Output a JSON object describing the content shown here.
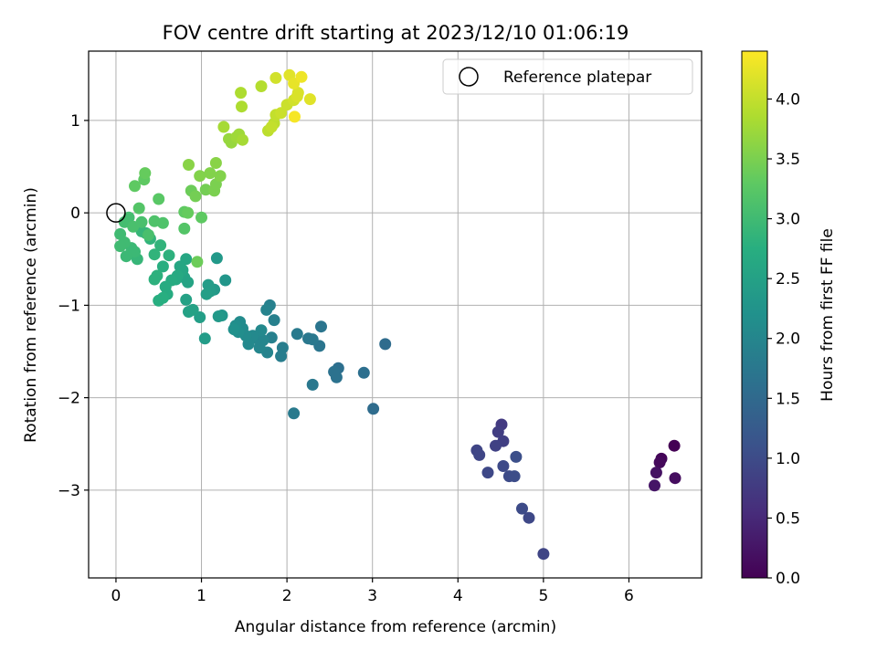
{
  "chart_data": {
    "type": "scatter",
    "title": "FOV centre drift starting at 2023/12/10 01:06:19",
    "xlabel": "Angular distance from reference (arcmin)",
    "ylabel": "Rotation from reference (arcmin)",
    "xlim": [
      -0.32,
      6.85
    ],
    "ylim": [
      -3.95,
      1.75
    ],
    "xticks": [
      0,
      1,
      2,
      3,
      4,
      5,
      6
    ],
    "xtick_labels": [
      "0",
      "1",
      "2",
      "3",
      "4",
      "5",
      "6"
    ],
    "yticks": [
      -3,
      -2,
      -1,
      0,
      1
    ],
    "ytick_labels": [
      "−3",
      "−2",
      "−1",
      "0",
      "1"
    ],
    "grid": true,
    "legend": {
      "position": "top-right",
      "label": "Reference platepar"
    },
    "reference_point": [
      0,
      0
    ],
    "colorbar": {
      "label": "Hours from first FF file",
      "colormap": "viridis",
      "range": [
        0.0,
        4.4
      ],
      "ticks": [
        0.0,
        0.5,
        1.0,
        1.5,
        2.0,
        2.5,
        3.0,
        3.5,
        4.0
      ],
      "tick_labels": [
        "0.0",
        "0.5",
        "1.0",
        "1.5",
        "2.0",
        "2.5",
        "3.0",
        "3.5",
        "4.0"
      ]
    },
    "series": [
      {
        "points": [
          [
            6.53,
            -2.52,
            0.0
          ],
          [
            6.38,
            -2.66,
            0.05
          ],
          [
            6.36,
            -2.7,
            0.1
          ],
          [
            6.54,
            -2.87,
            0.15
          ],
          [
            6.32,
            -2.81,
            0.2
          ],
          [
            6.3,
            -2.95,
            0.25
          ],
          [
            4.51,
            -2.29,
            0.75
          ],
          [
            4.47,
            -2.37,
            0.8
          ],
          [
            4.53,
            -2.47,
            0.82
          ],
          [
            4.44,
            -2.52,
            0.85
          ],
          [
            4.22,
            -2.57,
            0.9
          ],
          [
            4.25,
            -2.62,
            0.92
          ],
          [
            4.35,
            -2.81,
            0.95
          ],
          [
            4.53,
            -2.74,
            0.98
          ],
          [
            4.6,
            -2.85,
            1.0
          ],
          [
            4.66,
            -2.85,
            1.03
          ],
          [
            4.68,
            -2.64,
            1.05
          ],
          [
            4.75,
            -3.2,
            1.0
          ],
          [
            4.83,
            -3.3,
            0.95
          ],
          [
            5.0,
            -3.69,
            0.9
          ],
          [
            3.15,
            -1.42,
            1.55
          ],
          [
            3.01,
            -2.12,
            1.55
          ],
          [
            2.9,
            -1.73,
            1.6
          ],
          [
            2.6,
            -1.68,
            1.6
          ],
          [
            2.55,
            -1.72,
            1.65
          ],
          [
            2.58,
            -1.78,
            1.65
          ],
          [
            2.4,
            -1.23,
            1.7
          ],
          [
            2.38,
            -1.44,
            1.7
          ],
          [
            2.3,
            -1.37,
            1.75
          ],
          [
            2.25,
            -1.36,
            1.75
          ],
          [
            2.3,
            -1.86,
            1.75
          ],
          [
            2.08,
            -2.17,
            1.8
          ],
          [
            2.12,
            -1.31,
            1.8
          ],
          [
            1.95,
            -1.46,
            1.85
          ],
          [
            1.93,
            -1.55,
            1.85
          ],
          [
            1.85,
            -1.16,
            1.9
          ],
          [
            1.8,
            -1.0,
            1.9
          ],
          [
            1.82,
            -1.35,
            1.9
          ],
          [
            1.77,
            -1.51,
            1.95
          ],
          [
            1.76,
            -1.05,
            1.95
          ],
          [
            1.72,
            -1.38,
            2.0
          ],
          [
            1.68,
            -1.46,
            2.0
          ],
          [
            1.65,
            -1.36,
            2.0
          ],
          [
            1.7,
            -1.27,
            2.05
          ],
          [
            1.6,
            -1.33,
            2.05
          ],
          [
            1.55,
            -1.42,
            2.05
          ],
          [
            1.52,
            -1.33,
            2.1
          ],
          [
            1.48,
            -1.25,
            2.1
          ],
          [
            1.45,
            -1.18,
            2.1
          ],
          [
            1.43,
            -1.29,
            2.15
          ],
          [
            1.4,
            -1.22,
            2.15
          ],
          [
            1.38,
            -1.26,
            2.2
          ],
          [
            1.28,
            -0.73,
            2.3
          ],
          [
            1.24,
            -1.11,
            2.3
          ],
          [
            1.2,
            -1.12,
            2.35
          ],
          [
            1.18,
            -0.49,
            2.35
          ],
          [
            1.15,
            -0.83,
            2.35
          ],
          [
            1.1,
            -0.85,
            2.4
          ],
          [
            1.08,
            -0.78,
            2.4
          ],
          [
            1.06,
            -0.88,
            2.45
          ],
          [
            1.04,
            -1.36,
            2.4
          ],
          [
            0.98,
            -1.13,
            2.45
          ],
          [
            0.9,
            -1.05,
            2.5
          ],
          [
            0.85,
            -1.07,
            2.5
          ],
          [
            0.82,
            -0.94,
            2.5
          ],
          [
            0.84,
            -0.75,
            2.55
          ],
          [
            0.8,
            -0.7,
            2.55
          ],
          [
            0.78,
            -0.62,
            2.6
          ],
          [
            0.82,
            -0.5,
            2.6
          ],
          [
            0.75,
            -0.58,
            2.6
          ],
          [
            0.72,
            -0.68,
            2.65
          ],
          [
            0.7,
            -0.72,
            2.65
          ],
          [
            0.65,
            -0.73,
            2.7
          ],
          [
            0.6,
            -0.88,
            2.7
          ],
          [
            0.58,
            -0.8,
            2.7
          ],
          [
            0.55,
            -0.92,
            2.75
          ],
          [
            0.5,
            -0.95,
            2.75
          ],
          [
            0.55,
            -0.58,
            2.75
          ],
          [
            0.48,
            -0.68,
            2.8
          ],
          [
            0.45,
            -0.72,
            2.8
          ],
          [
            0.62,
            -0.46,
            2.8
          ],
          [
            0.52,
            -0.35,
            2.85
          ],
          [
            0.45,
            -0.45,
            2.85
          ],
          [
            0.4,
            -0.28,
            2.85
          ],
          [
            0.35,
            -0.22,
            2.9
          ],
          [
            0.3,
            -0.2,
            2.9
          ],
          [
            0.25,
            -0.5,
            2.9
          ],
          [
            0.22,
            -0.42,
            2.95
          ],
          [
            0.18,
            -0.38,
            2.95
          ],
          [
            0.12,
            -0.47,
            2.95
          ],
          [
            0.1,
            -0.32,
            3.0
          ],
          [
            0.05,
            -0.36,
            3.0
          ],
          [
            0.05,
            -0.23,
            3.0
          ],
          [
            0.1,
            -0.1,
            3.05
          ],
          [
            0.15,
            -0.05,
            3.05
          ],
          [
            0.2,
            -0.15,
            3.1
          ],
          [
            0.3,
            -0.1,
            3.1
          ],
          [
            0.38,
            -0.24,
            3.1
          ],
          [
            0.45,
            -0.09,
            3.15
          ],
          [
            0.55,
            -0.11,
            3.15
          ],
          [
            0.8,
            -0.17,
            3.2
          ],
          [
            0.27,
            0.05,
            3.2
          ],
          [
            0.5,
            0.15,
            3.25
          ],
          [
            0.22,
            0.29,
            3.3
          ],
          [
            0.33,
            0.36,
            3.3
          ],
          [
            0.34,
            0.43,
            3.35
          ],
          [
            0.8,
            0.01,
            3.3
          ],
          [
            0.84,
            0.0,
            3.35
          ],
          [
            1.0,
            -0.05,
            3.3
          ],
          [
            0.95,
            -0.53,
            3.4
          ],
          [
            0.88,
            0.24,
            3.4
          ],
          [
            0.93,
            0.18,
            3.45
          ],
          [
            1.05,
            0.25,
            3.45
          ],
          [
            1.15,
            0.24,
            3.5
          ],
          [
            1.17,
            0.31,
            3.5
          ],
          [
            1.22,
            0.4,
            3.55
          ],
          [
            0.98,
            0.4,
            3.55
          ],
          [
            1.1,
            0.43,
            3.55
          ],
          [
            1.17,
            0.54,
            3.6
          ],
          [
            0.85,
            0.52,
            3.6
          ],
          [
            1.32,
            0.8,
            3.7
          ],
          [
            1.35,
            0.76,
            3.7
          ],
          [
            1.41,
            0.82,
            3.75
          ],
          [
            1.44,
            0.85,
            3.75
          ],
          [
            1.48,
            0.79,
            3.8
          ],
          [
            1.26,
            0.93,
            3.8
          ],
          [
            1.47,
            1.15,
            3.85
          ],
          [
            1.46,
            1.3,
            3.85
          ],
          [
            1.7,
            1.37,
            3.9
          ],
          [
            1.78,
            0.89,
            3.95
          ],
          [
            1.85,
            0.97,
            3.95
          ],
          [
            1.82,
            0.93,
            4.0
          ],
          [
            1.87,
            1.06,
            4.0
          ],
          [
            1.93,
            1.08,
            4.05
          ],
          [
            2.0,
            1.17,
            4.05
          ],
          [
            2.08,
            1.22,
            4.1
          ],
          [
            2.12,
            1.26,
            4.15
          ],
          [
            2.13,
            1.3,
            4.15
          ],
          [
            2.27,
            1.23,
            4.2
          ],
          [
            1.87,
            1.46,
            4.1
          ],
          [
            2.03,
            1.49,
            4.2
          ],
          [
            2.08,
            1.4,
            4.25
          ],
          [
            2.17,
            1.47,
            4.3
          ],
          [
            2.09,
            1.04,
            4.35
          ]
        ]
      }
    ]
  }
}
